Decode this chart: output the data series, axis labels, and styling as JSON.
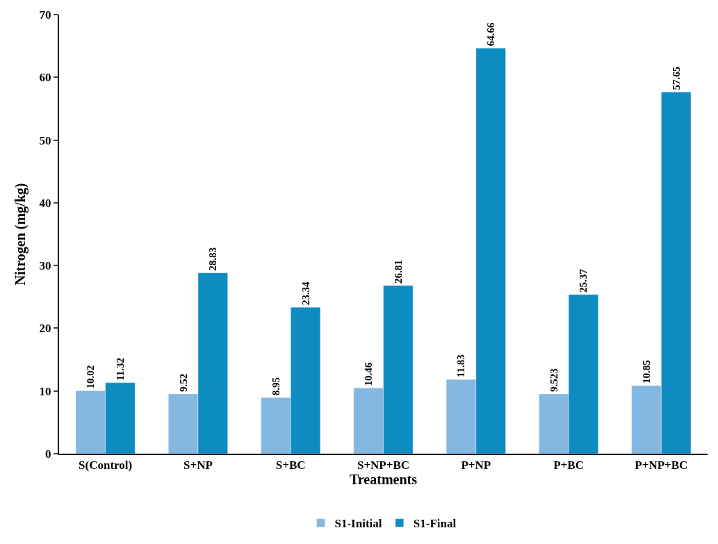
{
  "chart_data": {
    "type": "bar",
    "xlabel": "Treatments",
    "ylabel": "Nitrogen (mg/kg)",
    "categories": [
      "S(Control)",
      "S+NP",
      "S+BC",
      "S+NP+BC",
      "P+NP",
      "P+BC",
      "P+NP+BC"
    ],
    "series": [
      {
        "name": "S1-Initial",
        "color": "#85b8e0",
        "values": [
          10.02,
          9.52,
          8.95,
          10.46,
          11.83,
          9.523,
          10.85
        ]
      },
      {
        "name": "S1-Final",
        "color": "#0e8bc0",
        "values": [
          11.32,
          28.83,
          23.34,
          26.81,
          64.66,
          25.37,
          57.65
        ]
      }
    ],
    "ylim": [
      0,
      70
    ],
    "yticks": [
      0,
      10,
      20,
      30,
      40,
      50,
      60,
      70
    ],
    "data_labels": true,
    "legend": "bottom"
  }
}
